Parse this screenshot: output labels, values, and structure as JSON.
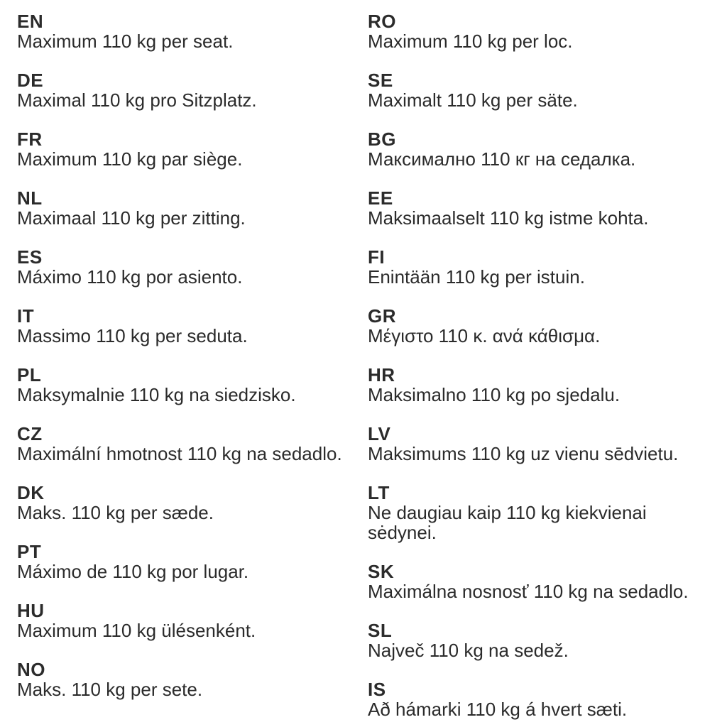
{
  "document": {
    "type": "multilingual-instruction-sheet",
    "background_color": "#ffffff",
    "text_color": "#2b2b2b"
  },
  "columns": {
    "left": [
      {
        "code": "EN",
        "text": "Maximum 110 kg per seat."
      },
      {
        "code": "DE",
        "text": "Maximal 110 kg pro Sitzplatz."
      },
      {
        "code": "FR",
        "text": "Maximum 110 kg par siège."
      },
      {
        "code": "NL",
        "text": "Maximaal 110 kg per zitting."
      },
      {
        "code": "ES",
        "text": "Máximo 110 kg por asiento."
      },
      {
        "code": "IT",
        "text": "Massimo 110 kg per seduta."
      },
      {
        "code": "PL",
        "text": "Maksymalnie 110 kg na siedzisko."
      },
      {
        "code": "CZ",
        "text": "Maximální hmotnost 110 kg na sedadlo."
      },
      {
        "code": "DK",
        "text": "Maks. 110 kg per sæde."
      },
      {
        "code": "PT",
        "text": "Máximo de 110 kg por lugar."
      },
      {
        "code": "HU",
        "text": "Maximum 110 kg ülésenként."
      },
      {
        "code": "NO",
        "text": "Maks. 110 kg per sete."
      }
    ],
    "right": [
      {
        "code": "RO",
        "text": "Maximum 110 kg per loc."
      },
      {
        "code": "SE",
        "text": "Maximalt 110 kg per säte."
      },
      {
        "code": "BG",
        "text": "Максимално 110 кг на седалка."
      },
      {
        "code": "EE",
        "text": "Maksimaalselt 110 kg istme kohta."
      },
      {
        "code": "FI",
        "text": "Enintään 110 kg per istuin."
      },
      {
        "code": "GR",
        "text": "Μέγιστο 110 κ. ανά κάθισμα."
      },
      {
        "code": "HR",
        "text": "Maksimalno 110 kg po sjedalu."
      },
      {
        "code": "LV",
        "text": "Maksimums 110 kg uz vienu sēdvietu."
      },
      {
        "code": "LT",
        "text": "Ne daugiau kaip 110 kg kiekvienai sėdynei."
      },
      {
        "code": "SK",
        "text": "Maximálna nosnosť 110 kg na sedadlo."
      },
      {
        "code": "SL",
        "text": "Največ 110 kg na sedež."
      },
      {
        "code": "IS",
        "text": "Að hámarki 110 kg á hvert sæti."
      }
    ]
  }
}
